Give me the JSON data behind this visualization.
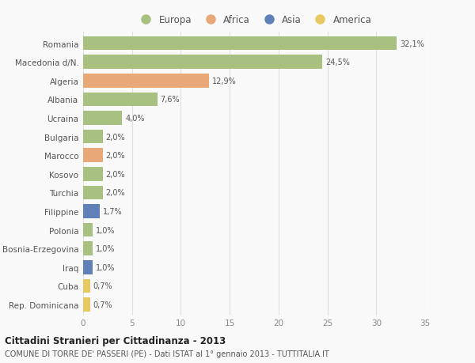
{
  "categories": [
    "Romania",
    "Macedonia d/N.",
    "Algeria",
    "Albania",
    "Ucraina",
    "Bulgaria",
    "Marocco",
    "Kosovo",
    "Turchia",
    "Filippine",
    "Polonia",
    "Bosnia-Erzegovina",
    "Iraq",
    "Cuba",
    "Rep. Dominicana"
  ],
  "values": [
    32.1,
    24.5,
    12.9,
    7.6,
    4.0,
    2.0,
    2.0,
    2.0,
    2.0,
    1.7,
    1.0,
    1.0,
    1.0,
    0.7,
    0.7
  ],
  "labels": [
    "32,1%",
    "24,5%",
    "12,9%",
    "7,6%",
    "4,0%",
    "2,0%",
    "2,0%",
    "2,0%",
    "2,0%",
    "1,7%",
    "1,0%",
    "1,0%",
    "1,0%",
    "0,7%",
    "0,7%"
  ],
  "colors": [
    "#a8c080",
    "#a8c080",
    "#e8a878",
    "#a8c080",
    "#a8c080",
    "#a8c080",
    "#e8a878",
    "#a8c080",
    "#a8c080",
    "#6080b8",
    "#a8c080",
    "#a8c080",
    "#6080b8",
    "#e8c860",
    "#e8c860"
  ],
  "legend_labels": [
    "Europa",
    "Africa",
    "Asia",
    "America"
  ],
  "legend_colors": [
    "#a8c080",
    "#e8a878",
    "#6080b8",
    "#e8c860"
  ],
  "title": "Cittadini Stranieri per Cittadinanza - 2013",
  "subtitle": "COMUNE DI TORRE DE' PASSERI (PE) - Dati ISTAT al 1° gennaio 2013 - TUTTITALIA.IT",
  "xlim": [
    0,
    35
  ],
  "xticks": [
    0,
    5,
    10,
    15,
    20,
    25,
    30,
    35
  ],
  "background_color": "#f9f9f9",
  "grid_color": "#e0e0e0",
  "bar_height": 0.75
}
